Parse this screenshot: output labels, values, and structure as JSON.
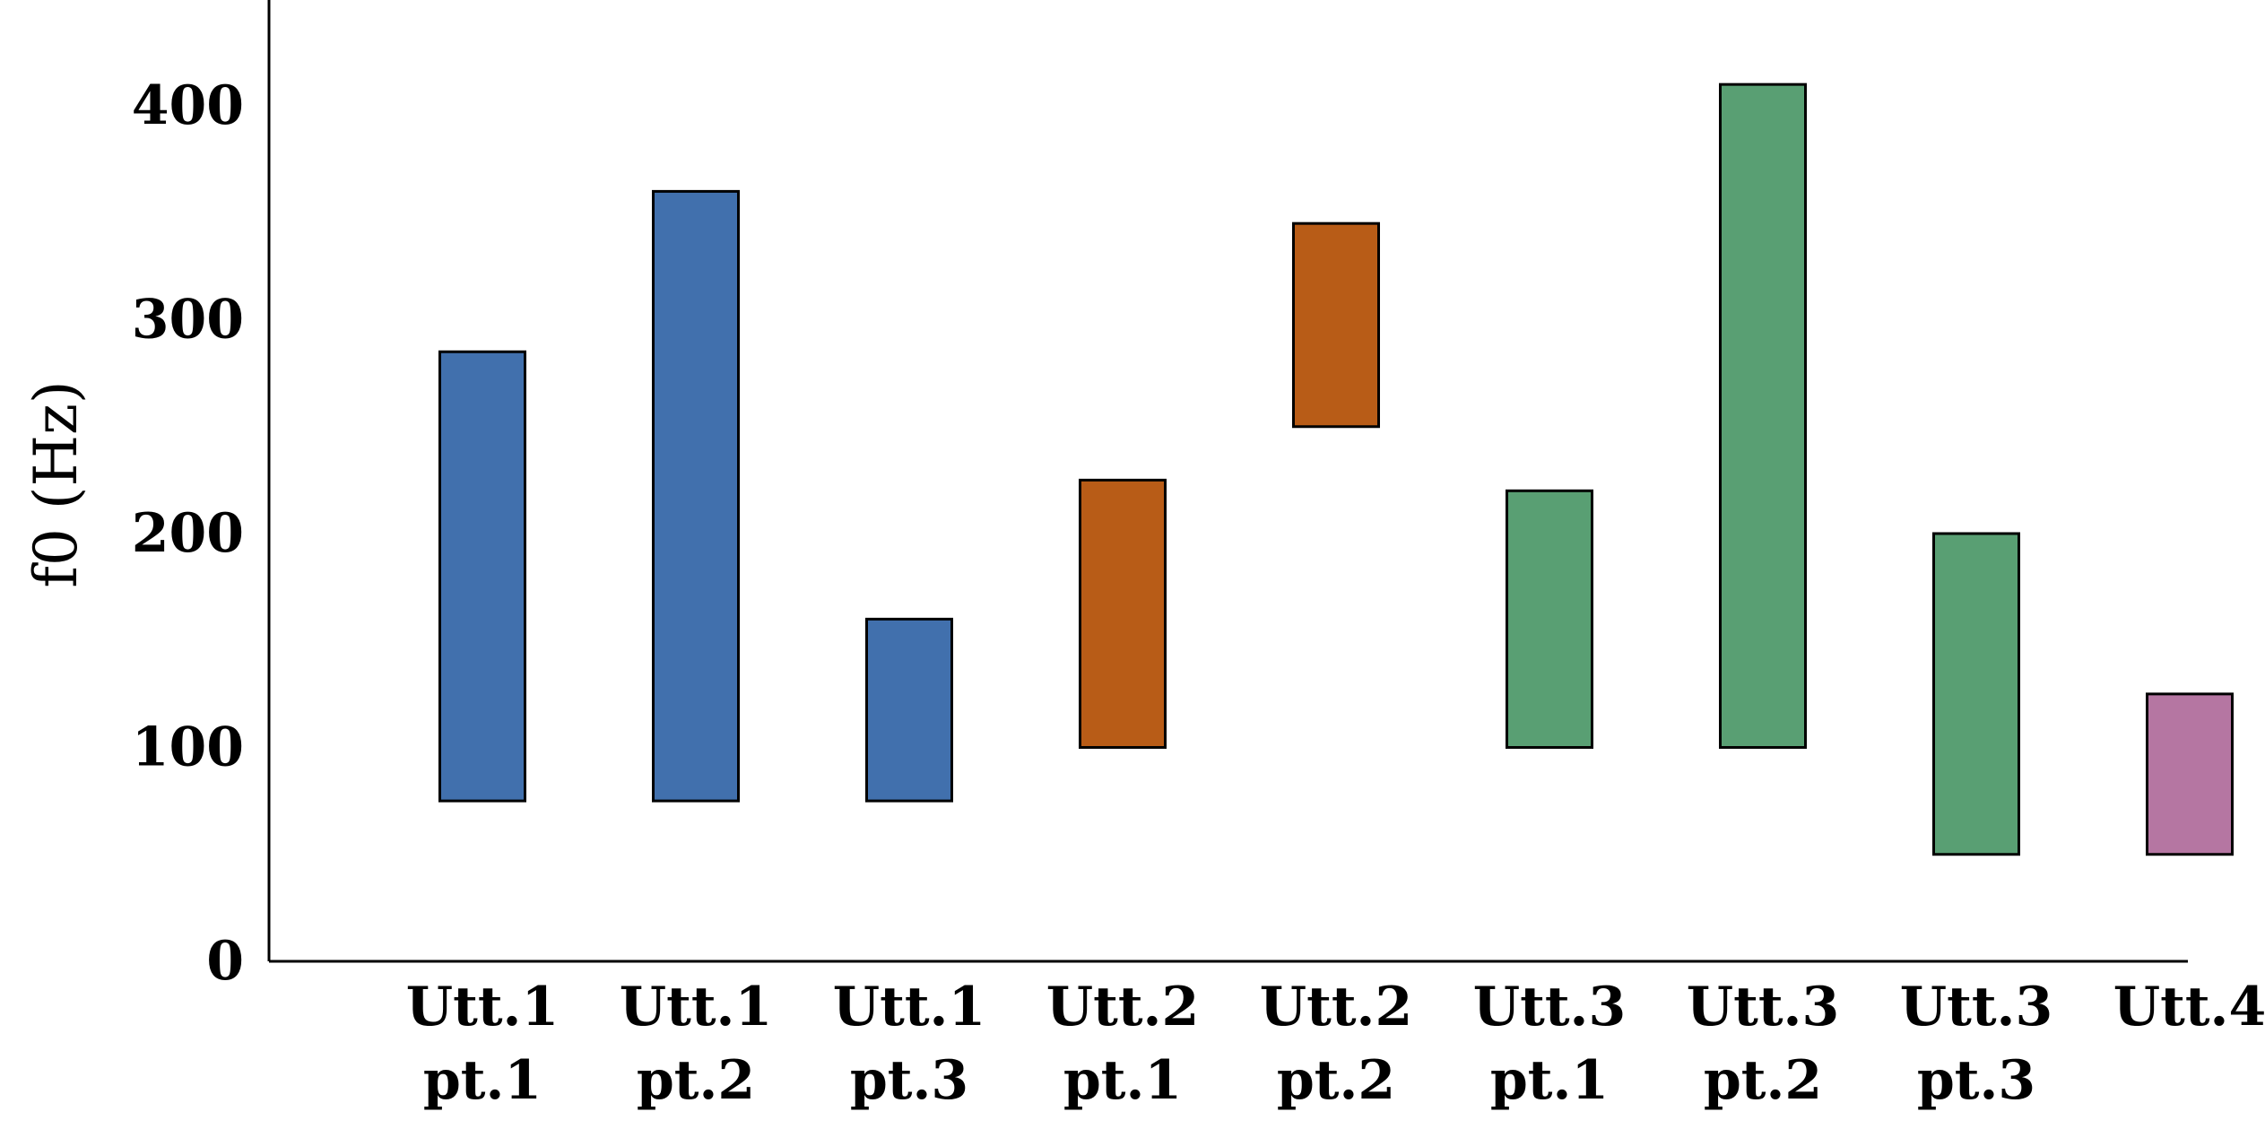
{
  "chart_data": {
    "type": "bar",
    "subtype": "floating-range",
    "title": "",
    "xlabel": "",
    "ylabel": "f0 (Hz)",
    "ylim": [
      0,
      450
    ],
    "yticks": [
      0,
      100,
      200,
      300,
      400
    ],
    "grid": false,
    "legend": "none",
    "categories": [
      [
        "Utt.1",
        "pt.1"
      ],
      [
        "Utt.1",
        "pt.2"
      ],
      [
        "Utt.1",
        "pt.3"
      ],
      [
        "Utt.2",
        "pt.1"
      ],
      [
        "Utt.2",
        "pt.2"
      ],
      [
        "Utt.3",
        "pt.1"
      ],
      [
        "Utt.3",
        "pt.2"
      ],
      [
        "Utt.3",
        "pt.3"
      ],
      [
        "Utt.4",
        ""
      ]
    ],
    "ranges": [
      [
        75,
        285
      ],
      [
        75,
        360
      ],
      [
        75,
        160
      ],
      [
        100,
        225
      ],
      [
        250,
        345
      ],
      [
        100,
        220
      ],
      [
        100,
        410
      ],
      [
        50,
        200
      ],
      [
        50,
        125
      ]
    ],
    "colors": [
      "#4170AD",
      "#4170AD",
      "#4170AD",
      "#B85C17",
      "#B85C17",
      "#599F73",
      "#599F73",
      "#599F73",
      "#B576A2"
    ],
    "axis_color": "#000000"
  }
}
